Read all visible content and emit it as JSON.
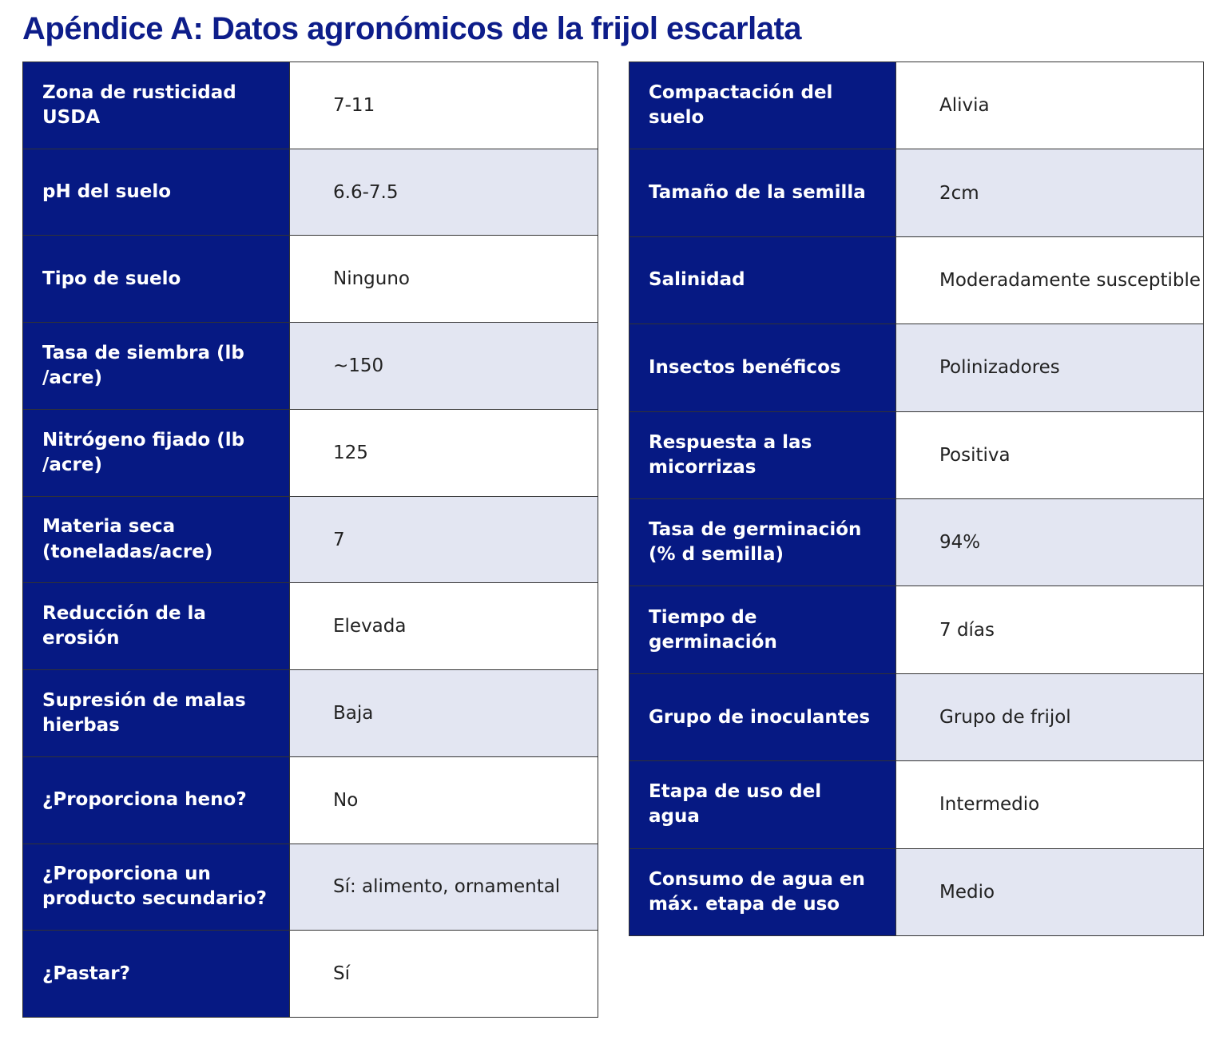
{
  "title": "Apéndice A: Datos agronómicos de la frijol escarlata",
  "left_table": {
    "rows": [
      [
        "Zona de rusticidad USDA",
        "7-11"
      ],
      [
        "pH del suelo",
        "6.6-7.5"
      ],
      [
        "Tipo de suelo",
        "Ninguno"
      ],
      [
        "Tasa de siembra (lb /acre)",
        "~150"
      ],
      [
        "Nitrógeno fijado (lb /acre)",
        "125"
      ],
      [
        "Materia seca (toneladas/acre)",
        "7"
      ],
      [
        "Reducción de la erosión",
        "Elevada"
      ],
      [
        "Supresión de malas hierbas",
        "Baja"
      ],
      [
        "¿Proporciona heno?",
        "No"
      ],
      [
        "¿Proporciona un producto secundario?",
        "Sí: alimento, ornamental"
      ],
      [
        "¿Pastar?",
        "Sí"
      ]
    ]
  },
  "right_table": {
    "rows": [
      [
        "Compactación del suelo",
        "Alivia"
      ],
      [
        "Tamaño de la semilla",
        "2cm"
      ],
      [
        "Salinidad",
        "Moderadamente susceptible"
      ],
      [
        "Insectos benéficos",
        "Polinizadores"
      ],
      [
        "Respuesta a las micorrizas",
        "Positiva"
      ],
      [
        "Tasa de germinación (% d semilla)",
        "94%"
      ],
      [
        "Tiempo de germinación",
        "7 días"
      ],
      [
        "Grupo de inoculantes",
        "Grupo de frijol"
      ],
      [
        "Etapa de uso del agua",
        "Intermedio"
      ],
      [
        "Consumo de agua en máx. etapa de uso",
        "Medio"
      ]
    ]
  }
}
